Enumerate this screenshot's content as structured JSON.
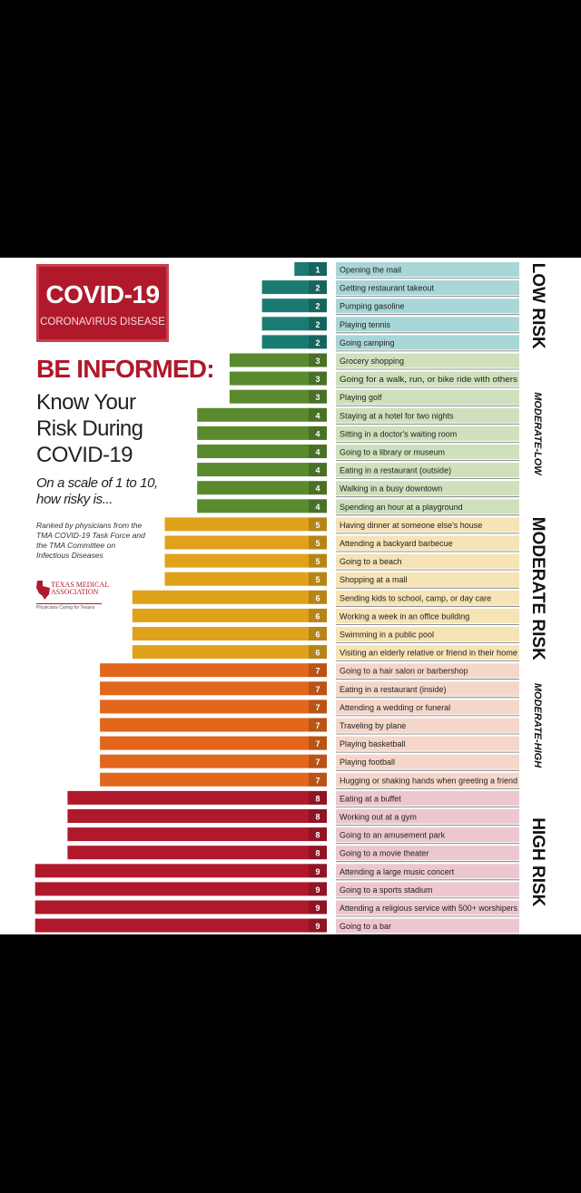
{
  "branding": {
    "covid_title": "COVID-19",
    "covid_subtitle": "CORONAVIRUS DISEASE",
    "headline": "BE INFORMED:",
    "subhead": "Know Your Risk During COVID-19",
    "scale_question": "On a scale of 1 to 10, how risky is...",
    "ranked_note": "Ranked by physicians from the TMA COVID-19 Task Force and the TMA Committee on Infectious Diseases",
    "tma_name": "TEXAS MEDICAL ASSOCIATION",
    "tma_tagline": "Physicians Caring for Texans"
  },
  "colors": {
    "1": "#1b7b73",
    "2": "#1b7b73",
    "3": "#5a8a2e",
    "4": "#5a8a2e",
    "5": "#e0a21b",
    "6": "#e0a21b",
    "7": "#e2661c",
    "8": "#b0192b",
    "9": "#b0192b",
    "covid_red": "#b0192b"
  },
  "chart_data": {
    "type": "bar",
    "orientation": "horizontal",
    "xlim": [
      0,
      9
    ],
    "bands": [
      {
        "label": "LOW RISK",
        "from": 0,
        "to": 4,
        "fill": "#a9d6d7"
      },
      {
        "label": "MODERATE-LOW",
        "from": 5,
        "to": 13,
        "fill": "#cfe0bd"
      },
      {
        "label": "MODERATE RISK",
        "from": 14,
        "to": 21,
        "fill": "#f6e3b6"
      },
      {
        "label": "MODERATE-HIGH",
        "from": 22,
        "to": 28,
        "fill": "#f5d7ca"
      },
      {
        "label": "HIGH RISK",
        "from": 29,
        "to": 36,
        "fill": "#edc7d0"
      }
    ],
    "categories": [
      "Opening the mail",
      "Getting restaurant takeout",
      "Pumping gasoline",
      "Playing tennis",
      "Going camping",
      "Grocery shopping",
      "Going for a walk, run, or bike ride with others",
      "Playing golf",
      "Staying at a hotel for two nights",
      "Sitting in a doctor's waiting room",
      "Going to a library or museum",
      "Eating in a restaurant (outside)",
      "Walking in a busy downtown",
      "Spending an hour at a playground",
      "Having dinner at someone else's house",
      "Attending a backyard barbecue",
      "Going to a beach",
      "Shopping at a mall",
      "Sending kids to school, camp, or day care",
      "Working a week in an office building",
      "Swimming in a public pool",
      "Visiting an elderly relative or friend in their home",
      "Going to a hair salon or barbershop",
      "Eating in a restaurant (inside)",
      "Attending a wedding or funeral",
      "Traveling by plane",
      "Playing basketball",
      "Playing football",
      "Hugging or shaking hands when greeting a friend",
      "Eating at a buffet",
      "Working out at a gym",
      "Going to an amusement park",
      "Going to a movie theater",
      "Attending a large music concert",
      "Going to a sports stadium",
      "Attending a religious service with 500+ worshipers",
      "Going to a bar"
    ],
    "values": [
      1,
      2,
      2,
      2,
      2,
      3,
      3,
      3,
      4,
      4,
      4,
      4,
      4,
      4,
      5,
      5,
      5,
      5,
      6,
      6,
      6,
      6,
      7,
      7,
      7,
      7,
      7,
      7,
      7,
      8,
      8,
      8,
      8,
      9,
      9,
      9,
      9
    ]
  }
}
